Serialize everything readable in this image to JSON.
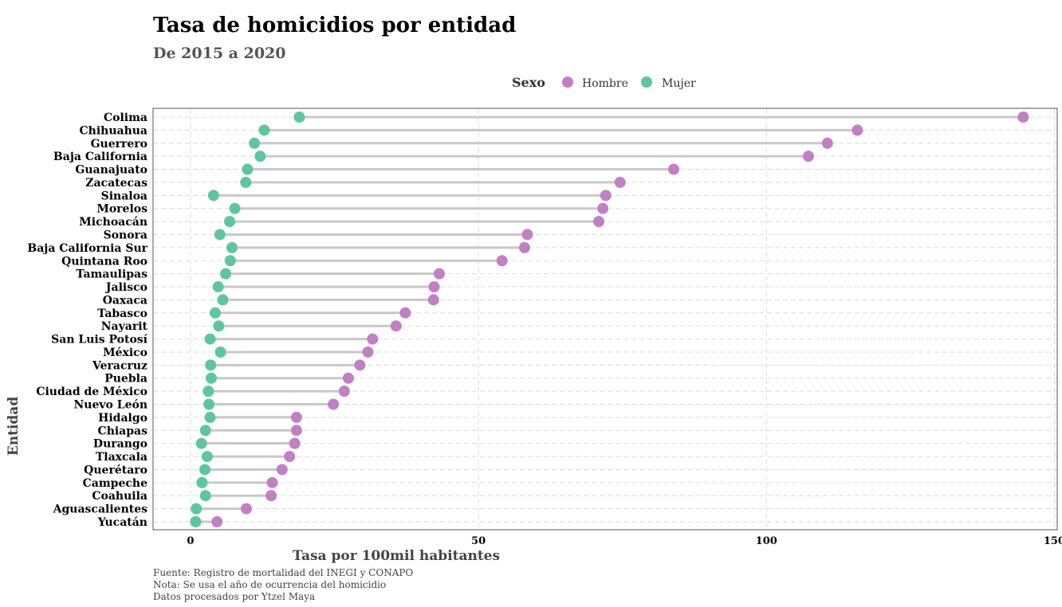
{
  "chart_data": {
    "type": "dumbbell",
    "title": "Tasa de homicidios por entidad",
    "subtitle": "De 2015 a 2020",
    "xlabel": "Tasa por 100mil habitantes",
    "ylabel": "Entidad",
    "xlim": [
      -6.5,
      150.5
    ],
    "x_ticks": [
      0,
      50,
      100,
      150
    ],
    "grid": true,
    "legend": {
      "title": "Sexo",
      "position": "top",
      "entries": [
        {
          "label": "Hombre",
          "color": "#C27FC5"
        },
        {
          "label": "Mujer",
          "color": "#5CC79E"
        }
      ]
    },
    "categories": [
      "Colima",
      "Chihuahua",
      "Guerrero",
      "Baja California",
      "Guanajuato",
      "Zacatecas",
      "Sinaloa",
      "Morelos",
      "Michoacán",
      "Sonora",
      "Baja California Sur",
      "Quintana Roo",
      "Tamaulipas",
      "Jalisco",
      "Oaxaca",
      "Tabasco",
      "Nayarit",
      "San Luis Potosí",
      "México",
      "Veracruz",
      "Puebla",
      "Ciudad de México",
      "Nuevo León",
      "Hidalgo",
      "Chiapas",
      "Durango",
      "Tlaxcala",
      "Querétaro",
      "Campeche",
      "Coahuila",
      "Aguascalientes",
      "Yucatán"
    ],
    "series": [
      {
        "name": "Hombre",
        "color": "#C27FC5",
        "values": [
          144.6,
          115.8,
          110.6,
          107.3,
          83.9,
          74.6,
          72.1,
          71.6,
          70.9,
          58.5,
          58.0,
          54.1,
          43.2,
          42.3,
          42.2,
          37.3,
          35.7,
          31.6,
          30.8,
          29.4,
          27.4,
          26.7,
          24.8,
          18.4,
          18.4,
          18.1,
          17.2,
          15.9,
          14.2,
          14.0,
          9.7,
          4.6
        ]
      },
      {
        "name": "Mujer",
        "color": "#5CC79E",
        "values": [
          18.9,
          12.8,
          11.1,
          12.1,
          9.9,
          9.6,
          4.0,
          7.7,
          6.8,
          5.1,
          7.2,
          6.9,
          6.1,
          4.8,
          5.6,
          4.3,
          4.9,
          3.4,
          5.2,
          3.5,
          3.6,
          3.1,
          3.2,
          3.4,
          2.6,
          1.9,
          2.9,
          2.5,
          2.0,
          2.6,
          1.0,
          0.9
        ]
      }
    ]
  },
  "caption": {
    "line1": "Fuente: Registro de mortalidad del INEGI y CONAPO",
    "line2": "Nota: Se usa el año de ocurrencia del homicidio",
    "line3": "Datos procesados por Ytzel Maya"
  }
}
